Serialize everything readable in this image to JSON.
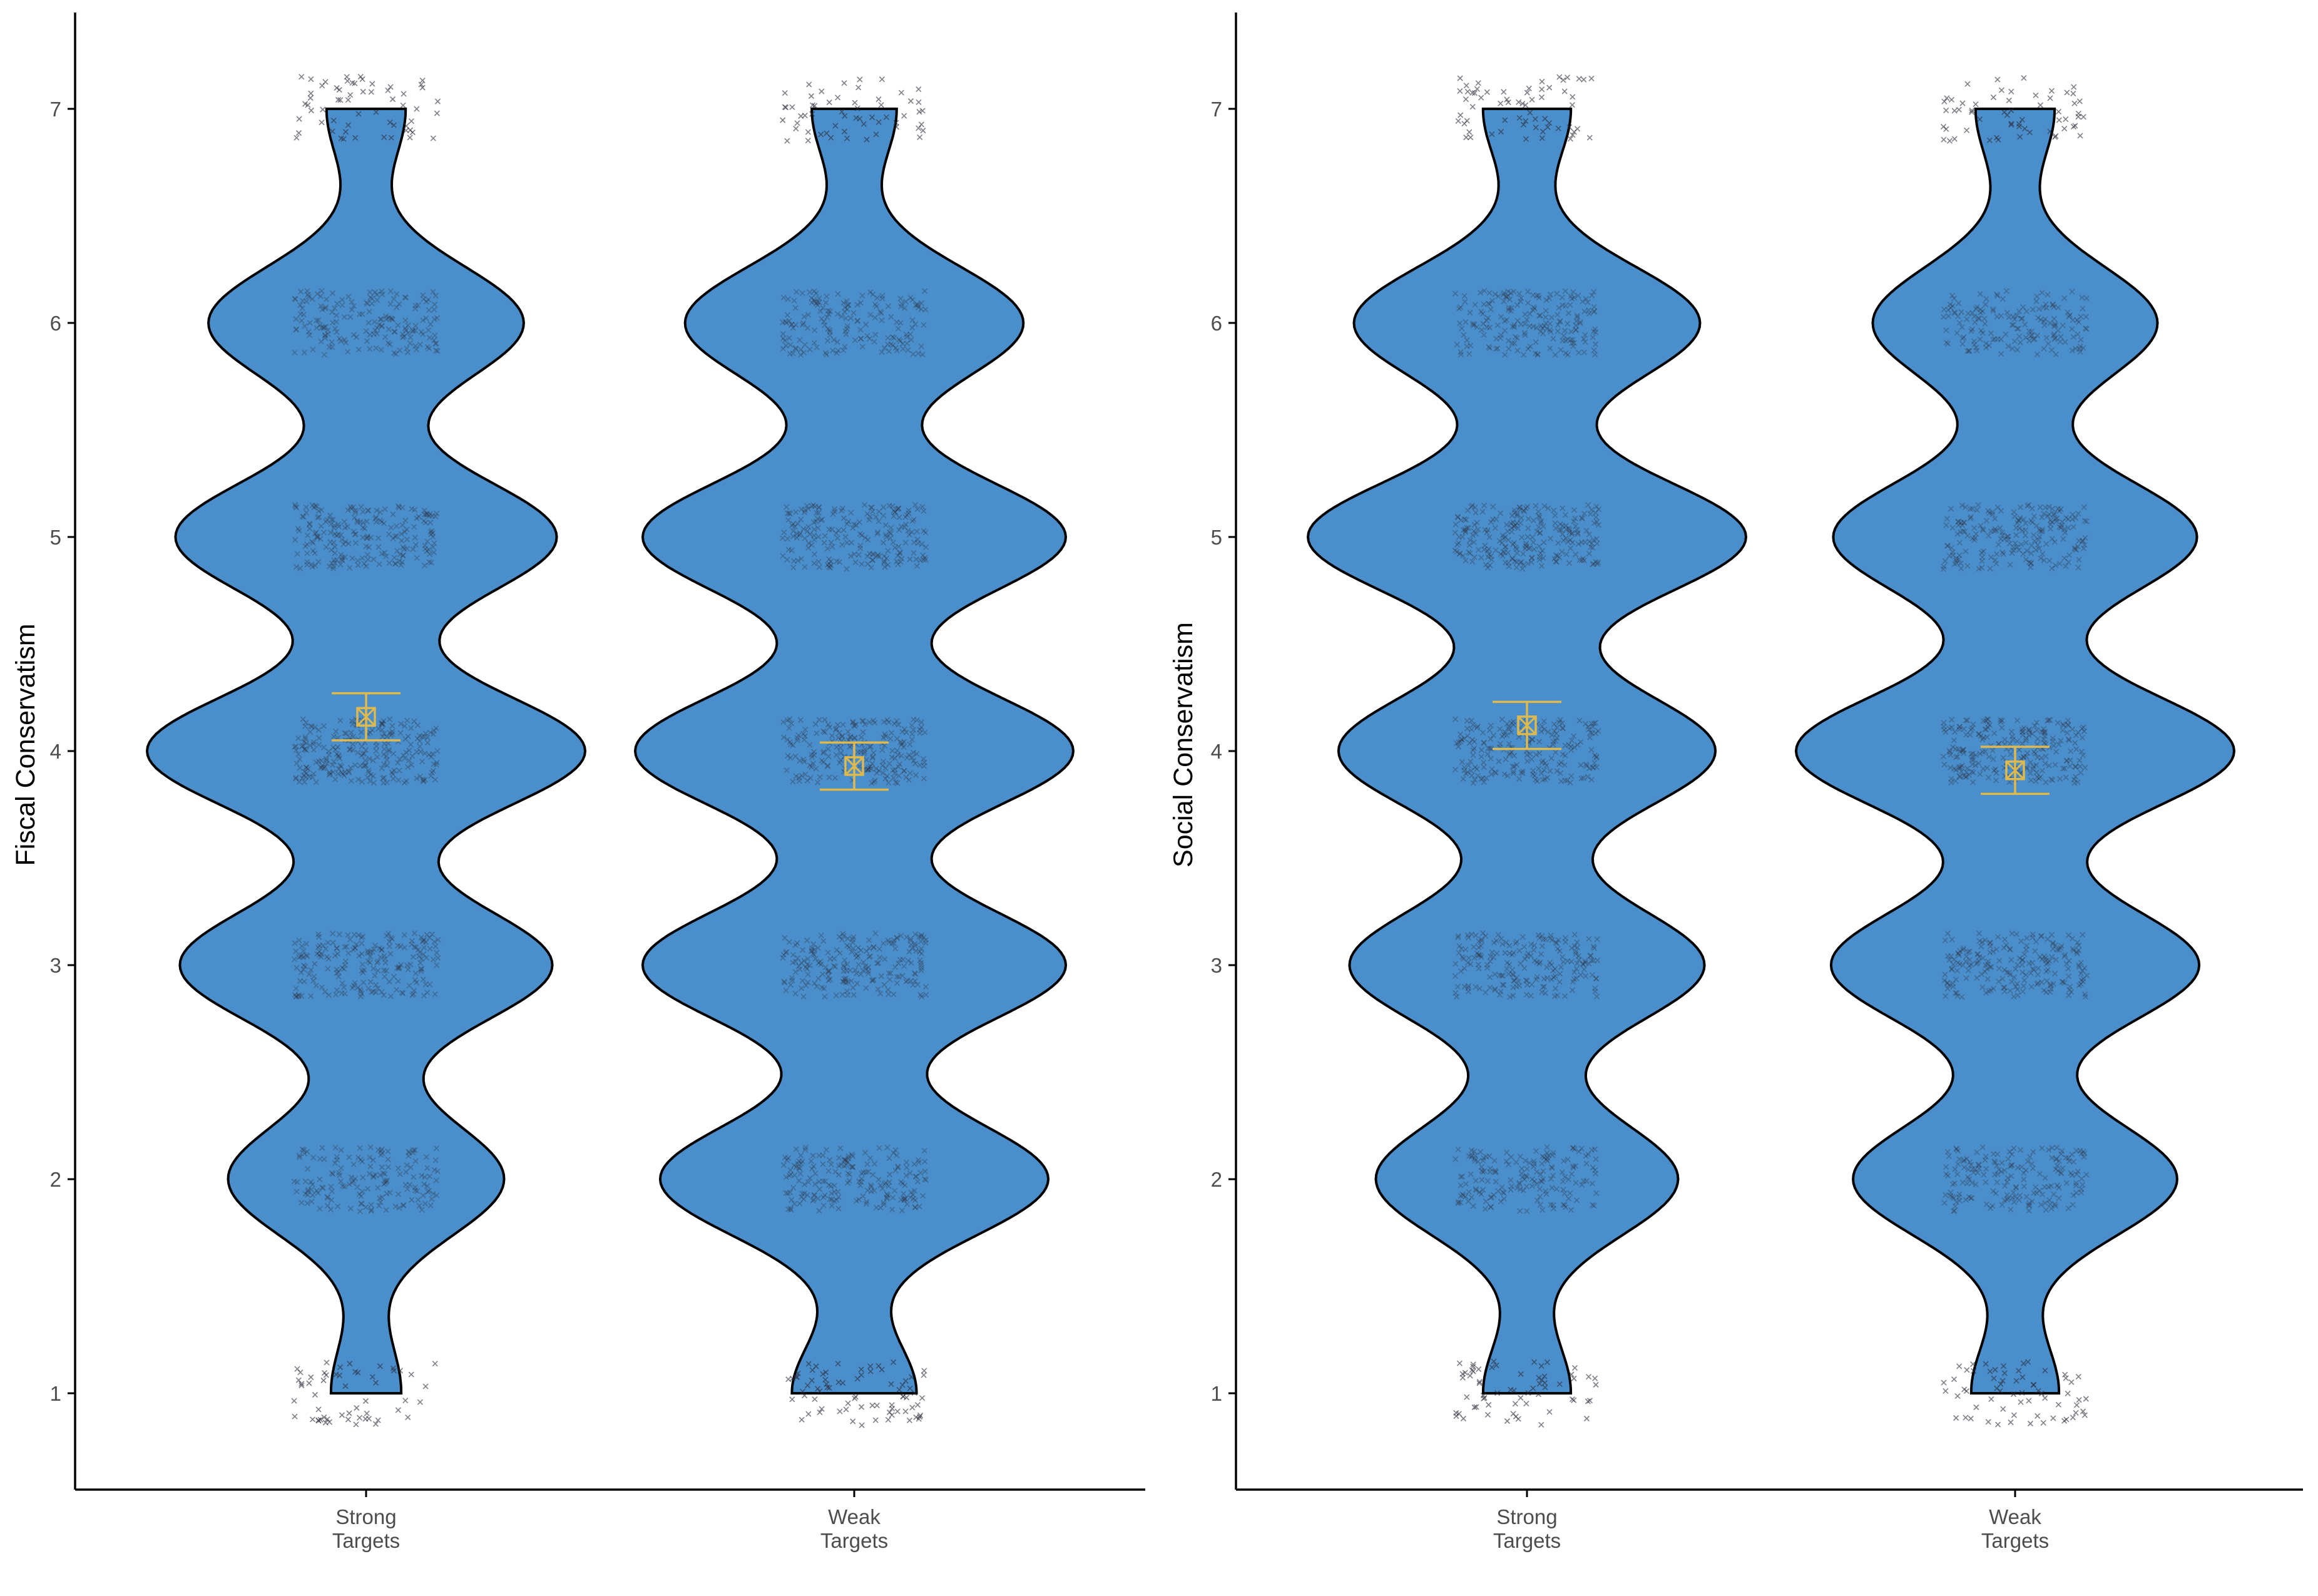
{
  "colors": {
    "violin_fill": "#4A8FCB",
    "violin_stroke": "#000000",
    "jitter_points": "#2b2b3a",
    "mean_marker": "#E0B94C",
    "axis": "#000000",
    "tick_text": "#4d4d4d"
  },
  "chart_data": [
    {
      "type": "violin",
      "ylabel": "Fiscal Conservatism",
      "xlabel": "",
      "ylim": [
        0.55,
        7.45
      ],
      "yticks": [
        1,
        2,
        3,
        4,
        5,
        6,
        7
      ],
      "ytick_labels": [
        "1",
        "2",
        "3",
        "4",
        "5",
        "6",
        "7"
      ],
      "grid": false,
      "point_marker": "x",
      "mean_marker": "boxed-x with error bars",
      "categories": [
        {
          "label_line1": "Strong",
          "label_line2": "Targets",
          "mean": 4.16,
          "ci_low": 4.05,
          "ci_high": 4.27,
          "relative_density": [
            0.16,
            0.63,
            0.85,
            1.0,
            0.87,
            0.72,
            0.18
          ]
        },
        {
          "label_line1": "Weak",
          "label_line2": "Targets",
          "mean": 3.93,
          "ci_low": 3.82,
          "ci_high": 4.04,
          "relative_density": [
            0.25,
            0.78,
            0.85,
            0.88,
            0.85,
            0.68,
            0.17
          ]
        }
      ]
    },
    {
      "type": "violin",
      "ylabel": "Social Conservatism",
      "xlabel": "",
      "ylim": [
        0.55,
        7.45
      ],
      "yticks": [
        1,
        2,
        3,
        4,
        5,
        6,
        7
      ],
      "ytick_labels": [
        "1",
        "2",
        "3",
        "4",
        "5",
        "6",
        "7"
      ],
      "grid": false,
      "point_marker": "x",
      "mean_marker": "boxed-x with error bars",
      "categories": [
        {
          "label_line1": "Strong",
          "label_line2": "Targets",
          "mean": 4.12,
          "ci_low": 4.01,
          "ci_high": 4.23,
          "relative_density": [
            0.2,
            0.69,
            0.81,
            0.86,
            1.0,
            0.79,
            0.2
          ]
        },
        {
          "label_line1": "Weak",
          "label_line2": "Targets",
          "mean": 3.91,
          "ci_low": 3.8,
          "ci_high": 4.02,
          "relative_density": [
            0.2,
            0.74,
            0.84,
            1.0,
            0.83,
            0.65,
            0.18
          ]
        }
      ]
    }
  ]
}
